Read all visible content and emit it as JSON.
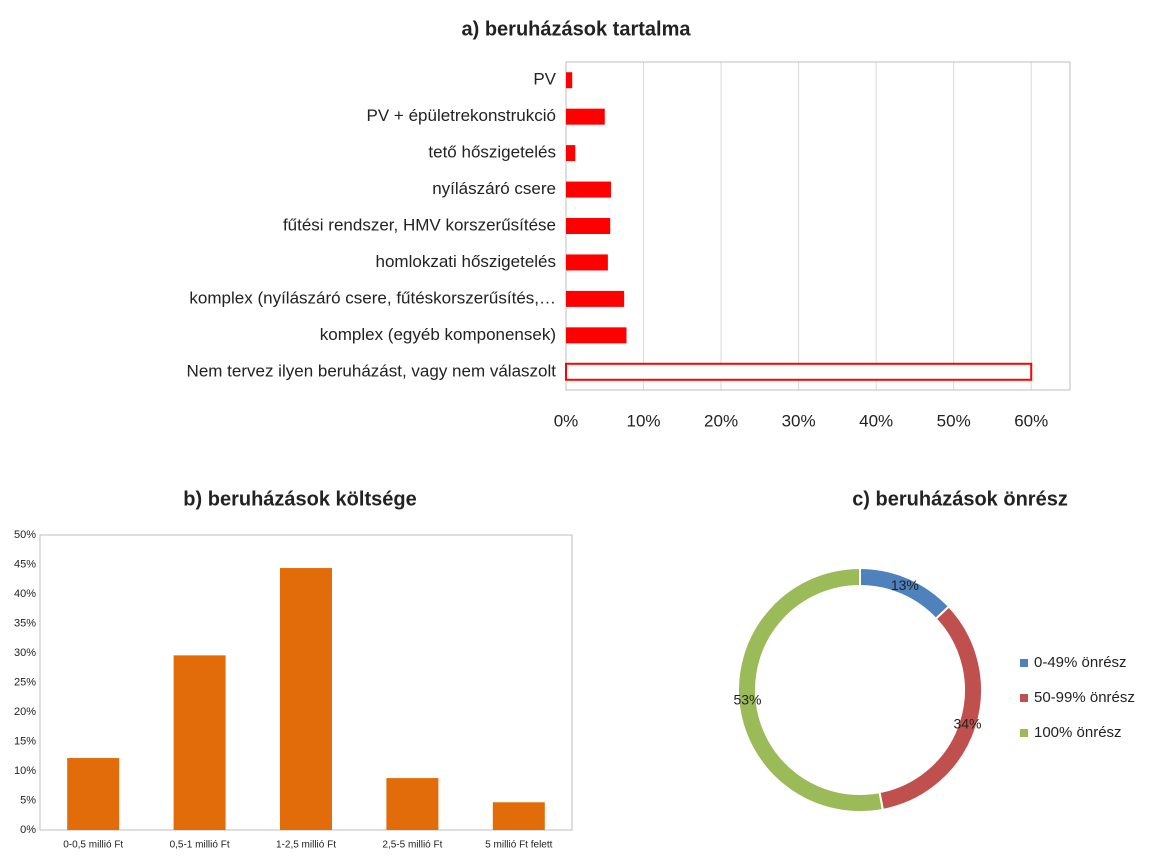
{
  "chart_data": [
    {
      "type": "bar",
      "horizontal": true,
      "title": "a) beruházások tartalma",
      "categories": [
        "PV",
        "PV + épületrekonstrukció",
        "tető hőszigetelés",
        "nyílászáró csere",
        "fűtési rendszer, HMV korszerűsítése",
        "homlokzati hőszigetelés",
        "komplex (nyílászáró csere,  fűtéskorszerűsítés,…",
        "komplex (egyéb komponensek)",
        "Nem tervez ilyen beruházást, vagy nem válaszolt"
      ],
      "values": [
        0.8,
        5.0,
        1.2,
        5.8,
        5.7,
        5.4,
        7.5,
        7.8,
        60.0
      ],
      "hollow": [
        false,
        false,
        false,
        false,
        false,
        false,
        false,
        false,
        true
      ],
      "color": "#ff0000",
      "xlim": [
        0,
        65
      ],
      "xticks": [
        {
          "value": 0,
          "label": "0%"
        },
        {
          "value": 10,
          "label": "10%"
        },
        {
          "value": 20,
          "label": "20%"
        },
        {
          "value": 30,
          "label": "30%"
        },
        {
          "value": 40,
          "label": "40%"
        },
        {
          "value": 50,
          "label": "50%"
        },
        {
          "value": 60,
          "label": "60%"
        }
      ],
      "grid": true
    },
    {
      "type": "bar",
      "horizontal": false,
      "title": "b) beruházások költsége",
      "categories": [
        "0-0,5 millió Ft",
        "0,5-1 millió Ft",
        "1-2,5 millió Ft",
        "2,5-5 millió Ft",
        "5 millió Ft felett"
      ],
      "values": [
        12.2,
        29.6,
        44.4,
        8.8,
        4.7
      ],
      "color": "#e36c0a",
      "ylim": [
        0,
        50
      ],
      "yticks": [
        {
          "value": 0,
          "label": "0%"
        },
        {
          "value": 5,
          "label": "5%"
        },
        {
          "value": 10,
          "label": "10%"
        },
        {
          "value": 15,
          "label": "15%"
        },
        {
          "value": 20,
          "label": "20%"
        },
        {
          "value": 25,
          "label": "25%"
        },
        {
          "value": 30,
          "label": "30%"
        },
        {
          "value": 35,
          "label": "35%"
        },
        {
          "value": 40,
          "label": "40%"
        },
        {
          "value": 45,
          "label": "45%"
        },
        {
          "value": 50,
          "label": "50%"
        }
      ],
      "grid": false
    },
    {
      "type": "pie",
      "donut": true,
      "title": "c) beruházások önrész",
      "categories": [
        "0-49% önrész",
        "50-99% önrész",
        "100% önrész"
      ],
      "values": [
        13,
        34,
        53
      ],
      "value_labels": [
        "13%",
        "34%",
        "53%"
      ],
      "colors": [
        "#4f81bd",
        "#c0504d",
        "#9bbb59"
      ],
      "legend": "right"
    }
  ]
}
